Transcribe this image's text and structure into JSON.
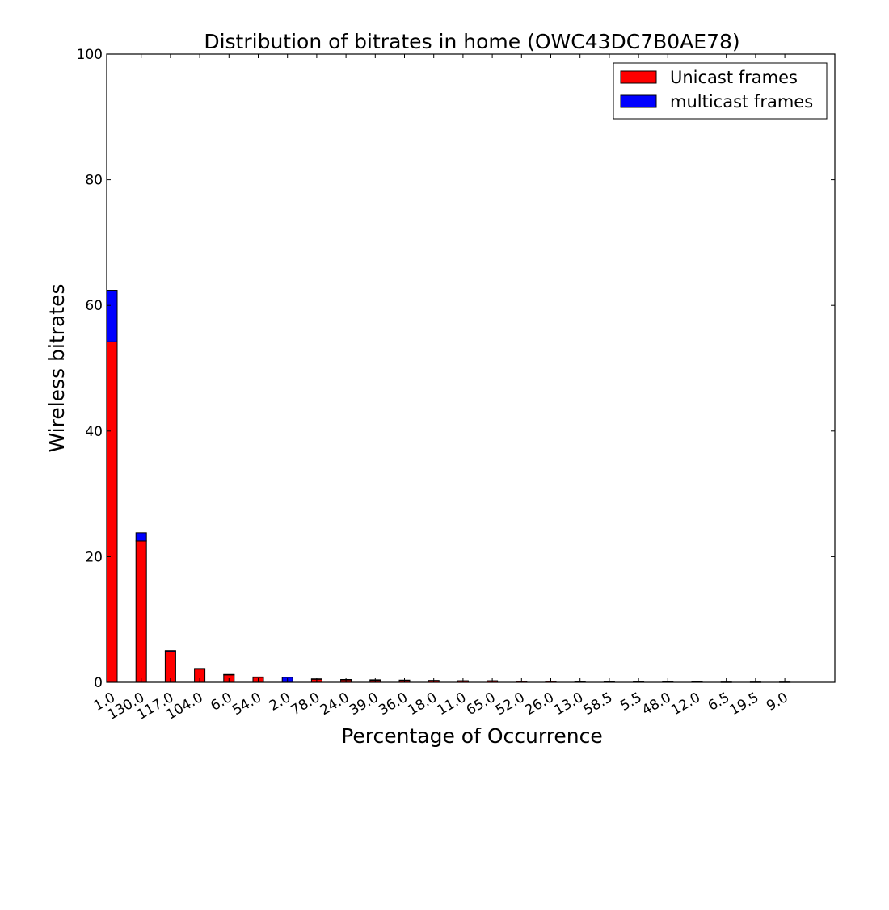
{
  "chart_data": {
    "type": "bar",
    "stacked": true,
    "title": "Distribution of bitrates in home (OWC43DC7B0AE78)",
    "xlabel": "Percentage of Occurrence",
    "ylabel": "Wireless bitrates",
    "ylim": [
      0,
      100
    ],
    "yticks": [
      0,
      20,
      40,
      60,
      80,
      100
    ],
    "legend_position": "top-right",
    "grid": false,
    "categories": [
      "1.0",
      "130.0",
      "117.0",
      "104.0",
      "6.0",
      "54.0",
      "2.0",
      "78.0",
      "24.0",
      "39.0",
      "36.0",
      "18.0",
      "11.0",
      "65.0",
      "52.0",
      "26.0",
      "13.0",
      "58.5",
      "5.5",
      "48.0",
      "12.0",
      "6.5",
      "19.5",
      "9.0"
    ],
    "series": [
      {
        "name": "Unicast frames",
        "color": "#ff0000",
        "values": [
          54.2,
          22.5,
          4.9,
          2.1,
          1.2,
          0.8,
          0.0,
          0.5,
          0.4,
          0.35,
          0.25,
          0.25,
          0.2,
          0.2,
          0.15,
          0.15,
          0.1,
          0.1,
          0.1,
          0.1,
          0.1,
          0.05,
          0.05,
          0.05
        ]
      },
      {
        "name": "multicast frames",
        "color": "#0000ff",
        "values": [
          8.2,
          1.3,
          0.15,
          0.1,
          0.05,
          0.05,
          0.8,
          0.05,
          0.05,
          0.05,
          0.1,
          0.05,
          0.05,
          0.05,
          0.0,
          0.0,
          0.0,
          0.0,
          0.0,
          0.0,
          0.0,
          0.0,
          0.0,
          0.0
        ]
      }
    ]
  }
}
